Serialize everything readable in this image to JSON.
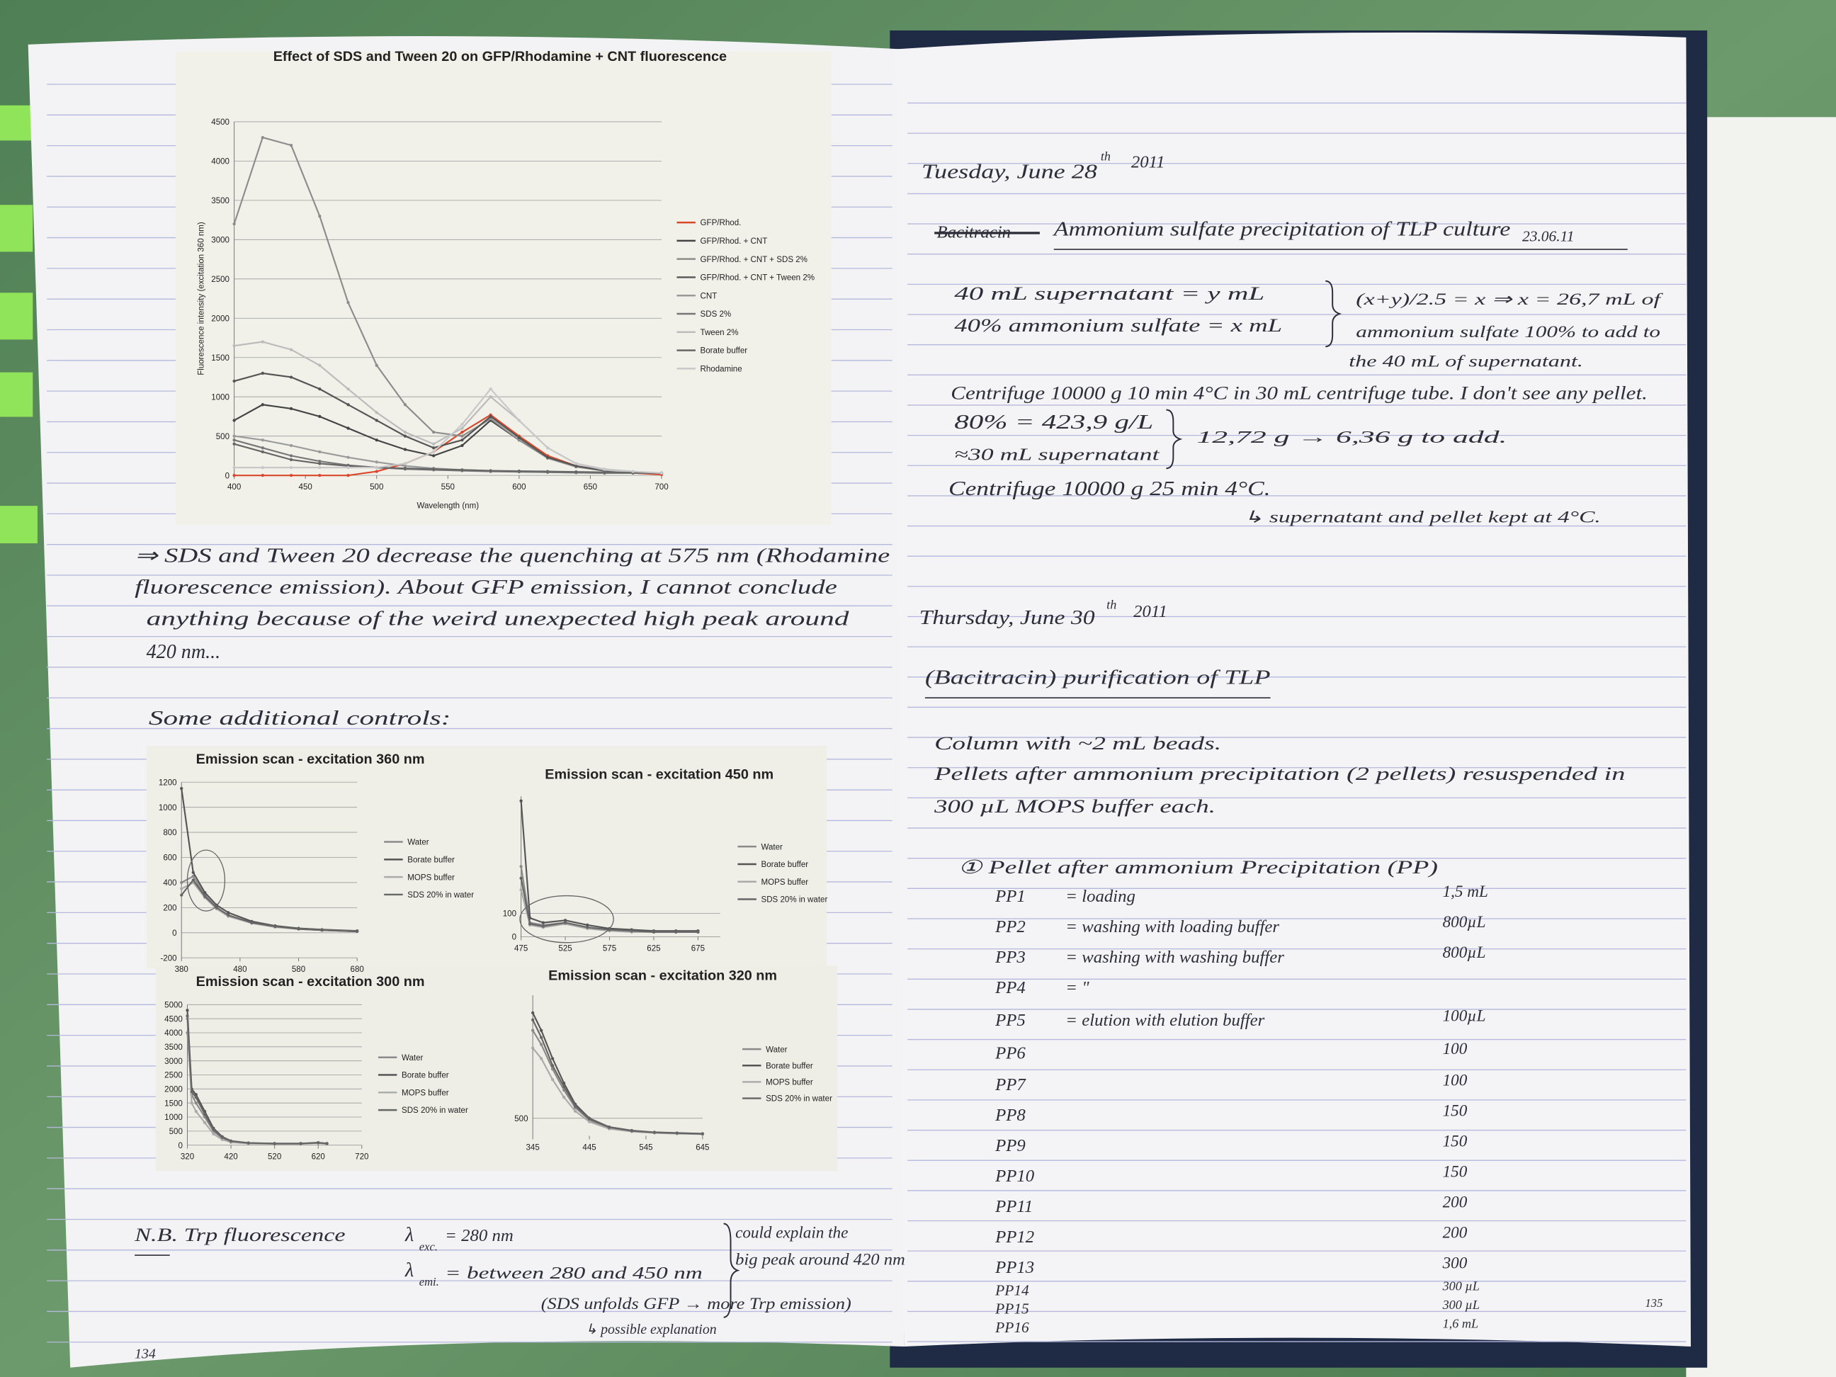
{
  "left_page": {
    "main_chart": {
      "type": "line",
      "title": "Effect of SDS and Tween 20 on GFP/Rhodamine + CNT fluorescence",
      "y_label": "Fluorescence intensity (excitation 360 nm)",
      "x_label": "Wavelength (nm)",
      "x": [
        400,
        420,
        440,
        460,
        480,
        500,
        520,
        540,
        560,
        580,
        600,
        620,
        640,
        660,
        680,
        700
      ],
      "xlim": [
        400,
        700
      ],
      "xticks": [
        400,
        450,
        500,
        550,
        600,
        650,
        700
      ],
      "ylim": [
        0,
        4500
      ],
      "yticks": [
        0,
        500,
        1000,
        1500,
        2000,
        2500,
        3000,
        3500,
        4000,
        4500
      ],
      "grid": true,
      "series": [
        {
          "name": "GFP/Rhod.",
          "color": "#d9482b",
          "values": [
            0,
            0,
            0,
            0,
            0,
            50,
            150,
            300,
            550,
            770,
            500,
            250,
            120,
            60,
            30,
            10
          ]
        },
        {
          "name": "GFP/Rhod. + CNT",
          "color": "#444444",
          "values": [
            700,
            900,
            850,
            750,
            600,
            450,
            330,
            250,
            380,
            700,
            450,
            220,
            110,
            60,
            40,
            30
          ]
        },
        {
          "name": "GFP/Rhod. + CNT + SDS 2%",
          "color": "#8c8c8c",
          "values": [
            3200,
            4300,
            4200,
            3300,
            2200,
            1400,
            900,
            550,
            500,
            720,
            450,
            220,
            110,
            60,
            40,
            30
          ]
        },
        {
          "name": "GFP/Rhod. + CNT + Tween 2%",
          "color": "#555555",
          "values": [
            1200,
            1300,
            1250,
            1100,
            900,
            700,
            500,
            350,
            450,
            750,
            480,
            230,
            120,
            60,
            40,
            30
          ]
        },
        {
          "name": "CNT",
          "color": "#9a9a9a",
          "values": [
            500,
            450,
            380,
            300,
            230,
            170,
            120,
            90,
            70,
            60,
            50,
            40,
            35,
            30,
            30,
            30
          ]
        },
        {
          "name": "SDS 2%",
          "color": "#777777",
          "values": [
            450,
            350,
            250,
            180,
            130,
            100,
            80,
            70,
            60,
            50,
            45,
            40,
            35,
            30,
            30,
            30
          ]
        },
        {
          "name": "Tween 2%",
          "color": "#bbbbbb",
          "values": [
            1650,
            1700,
            1600,
            1400,
            1100,
            800,
            550,
            400,
            600,
            1000,
            700,
            350,
            150,
            70,
            40,
            30
          ]
        },
        {
          "name": "Borate buffer",
          "color": "#666666",
          "values": [
            400,
            300,
            200,
            150,
            120,
            100,
            90,
            80,
            70,
            60,
            55,
            50,
            45,
            40,
            35,
            30
          ]
        },
        {
          "name": "Rhodamine",
          "color": "#c8c8c8",
          "values": [
            100,
            100,
            100,
            100,
            100,
            100,
            150,
            300,
            650,
            1100,
            700,
            350,
            150,
            80,
            50,
            30
          ]
        }
      ]
    },
    "conclusion": [
      "⇒ SDS and Tween 20 decrease the quenching at 575 nm (Rhodamine",
      "fluorescence emission). About GFP emission, I cannot conclude",
      "anything because of the weird unexpected high peak around",
      "420 nm..."
    ],
    "controls_heading": "Some additional controls:",
    "emission_scans": [
      {
        "type": "line",
        "title": "Emission scan - excitation 360 nm",
        "x": [
          380,
          400,
          420,
          440,
          460,
          500,
          540,
          580,
          620,
          680
        ],
        "xlim": [
          380,
          680
        ],
        "xticks": [
          380,
          480,
          580,
          680
        ],
        "ylim": [
          -200,
          1200
        ],
        "yticks": [
          -200,
          0,
          200,
          400,
          600,
          800,
          1000,
          1200
        ],
        "grid": true,
        "series": [
          {
            "name": "Water",
            "color": "#8a8a8a",
            "values": [
              400,
              450,
              300,
              200,
              140,
              80,
              50,
              30,
              20,
              10
            ]
          },
          {
            "name": "Borate buffer",
            "color": "#555555",
            "values": [
              1150,
              480,
              320,
              220,
              160,
              90,
              55,
              35,
              25,
              15
            ]
          },
          {
            "name": "MOPS buffer",
            "color": "#aaaaaa",
            "values": [
              350,
              400,
              280,
              190,
              130,
              75,
              45,
              30,
              20,
              10
            ]
          },
          {
            "name": "SDS 20% in water",
            "color": "#666666",
            "values": [
              300,
              420,
              290,
              200,
              140,
              80,
              50,
              30,
              20,
              10
            ]
          }
        ]
      },
      {
        "type": "line",
        "title": "Emission scan - excitation 450 nm",
        "x": [
          475,
          485,
          500,
          525,
          550,
          575,
          600,
          625,
          650,
          675
        ],
        "xlim": [
          475,
          700
        ],
        "xticks": [
          475,
          525,
          575,
          625,
          675
        ],
        "ylim": [
          0,
          600
        ],
        "yticks": [
          0,
          100
        ],
        "grid": true,
        "series": [
          {
            "name": "Water",
            "color": "#8a8a8a",
            "values": [
              300,
              60,
              50,
              60,
              40,
              30,
              25,
              20,
              20,
              20
            ]
          },
          {
            "name": "Borate buffer",
            "color": "#555555",
            "values": [
              580,
              80,
              60,
              70,
              50,
              35,
              30,
              25,
              25,
              25
            ]
          },
          {
            "name": "MOPS buffer",
            "color": "#aaaaaa",
            "values": [
              200,
              50,
              40,
              55,
              35,
              25,
              20,
              20,
              20,
              20
            ]
          },
          {
            "name": "SDS 20% in water",
            "color": "#666666",
            "values": [
              250,
              55,
              45,
              60,
              40,
              30,
              25,
              20,
              20,
              20
            ]
          }
        ]
      },
      {
        "type": "line",
        "title": "Emission scan - excitation 300 nm",
        "x": [
          320,
          330,
          340,
          360,
          380,
          400,
          420,
          460,
          520,
          580,
          620,
          640
        ],
        "xlim": [
          320,
          720
        ],
        "xticks": [
          320,
          420,
          520,
          620,
          720
        ],
        "ylim": [
          0,
          5000
        ],
        "yticks": [
          0,
          500,
          1000,
          1500,
          2000,
          2500,
          3000,
          3500,
          4000,
          4500,
          5000
        ],
        "grid": true,
        "series": [
          {
            "name": "Water",
            "color": "#8a8a8a",
            "values": [
              4000,
              1800,
              1500,
              1000,
              500,
              250,
              120,
              70,
              50,
              50,
              80,
              50
            ]
          },
          {
            "name": "Borate buffer",
            "color": "#555555",
            "values": [
              4800,
              2000,
              1800,
              1200,
              600,
              300,
              150,
              80,
              60,
              60,
              90,
              60
            ]
          },
          {
            "name": "MOPS buffer",
            "color": "#aaaaaa",
            "values": [
              4500,
              1500,
              1200,
              800,
              400,
              200,
              100,
              60,
              50,
              50,
              70,
              50
            ]
          },
          {
            "name": "SDS 20% in water",
            "color": "#666666",
            "values": [
              4600,
              1900,
              1700,
              1100,
              550,
              280,
              140,
              75,
              55,
              55,
              85,
              55
            ]
          }
        ]
      },
      {
        "type": "line",
        "title": "Emission scan - excitation 320 nm",
        "x": [
          345,
          360,
          380,
          400,
          420,
          445,
          480,
          520,
          560,
          600,
          645
        ],
        "xlim": [
          345,
          645
        ],
        "xticks": [
          345,
          445,
          545,
          645
        ],
        "ylim": [
          0,
          4000
        ],
        "yticks": [
          500
        ],
        "grid": true,
        "series": [
          {
            "name": "Water",
            "color": "#8a8a8a",
            "values": [
              3000,
              2600,
              1900,
              1300,
              800,
              450,
              220,
              130,
              90,
              70,
              50
            ]
          },
          {
            "name": "Borate buffer",
            "color": "#555555",
            "values": [
              3500,
              3000,
              2200,
              1500,
              900,
              500,
              250,
              150,
              100,
              80,
              60
            ]
          },
          {
            "name": "MOPS buffer",
            "color": "#aaaaaa",
            "values": [
              2500,
              2200,
              1600,
              1100,
              700,
              400,
              200,
              120,
              80,
              60,
              45
            ]
          },
          {
            "name": "SDS 20% in water",
            "color": "#666666",
            "values": [
              3300,
              2800,
              2000,
              1400,
              850,
              480,
              240,
              140,
              95,
              75,
              55
            ]
          }
        ]
      }
    ],
    "note": {
      "label": "N.B. Trp fluorescence",
      "exc_symbol": "λ",
      "exc_sub": "exc.",
      "exc_value": "= 280 nm",
      "emi_symbol": "λ",
      "emi_sub": "emi.",
      "emi_value": "= between 280 and 450 nm",
      "brace_text": [
        "could explain the",
        "big peak around 420 nm"
      ],
      "reason": "(SDS unfolds GFP → more Trp emission)",
      "reason_note": "↳ possible explanation"
    },
    "page_number": "134"
  },
  "right_page": {
    "tuesday": {
      "date": "Tuesday, June 28",
      "date_sup": "th",
      "date_year": "2011",
      "struck": "Bacitracin",
      "heading": "Ammonium sulfate precipitation of TLP culture",
      "heading_date": "23.06.11",
      "equations": [
        "40 mL supernatant = y mL",
        "40% ammonium sulfate = x mL"
      ],
      "result": [
        "(x+y)/2.5 = x ⇒ x = 26,7 mL of",
        "ammonium sulfate 100% to add to",
        "the 40 mL of supernatant."
      ],
      "centrifuge_1": "Centrifuge 10000 g 10 min 4°C in 30 mL centrifuge tube. I don't see any pellet.",
      "calc": [
        "80% = 423,9 g/L",
        "≈30 mL supernatant"
      ],
      "calc_result": "12,72 g → 6,36 g to add.",
      "centrifuge_2": "Centrifuge 10000 g 25 min 4°C.",
      "storage": "↳ supernatant and pellet kept at 4°C."
    },
    "thursday": {
      "date": "Thursday, June 30",
      "date_sup": "th",
      "date_year": "2011",
      "heading": "(Bacitracin) purification of TLP",
      "lines": [
        "Column with ~2 mL beads.",
        "Pellets after ammonium precipitation (2 pellets) resuspended in",
        "300 µL MOPS buffer each."
      ],
      "table_heading": "① Pellet after ammonium Precipitation (PP)",
      "rows": [
        {
          "label": "PP1",
          "description": "= loading",
          "volume": "1,5 mL"
        },
        {
          "label": "PP2",
          "description": "= washing with loading buffer",
          "volume": "800µL"
        },
        {
          "label": "PP3",
          "description": "= washing with washing buffer",
          "volume": "800µL"
        },
        {
          "label": "PP4",
          "description": "= \""
        },
        {
          "label": "PP5",
          "description": "= elution with elution buffer",
          "volume": "100µL"
        },
        {
          "label": "PP6",
          "volume": "100"
        },
        {
          "label": "PP7",
          "volume": "100"
        },
        {
          "label": "PP8",
          "volume": "150"
        },
        {
          "label": "PP9",
          "volume": "150"
        },
        {
          "label": "PP10",
          "volume": "150"
        },
        {
          "label": "PP11",
          "volume": "200"
        },
        {
          "label": "PP12",
          "volume": "200"
        },
        {
          "label": "PP13",
          "volume": "300"
        },
        {
          "label": "PP14",
          "volume": "300 µL"
        },
        {
          "label": "PP15",
          "volume": "300 µL"
        },
        {
          "label": "PP16",
          "volume": "1,6 mL"
        }
      ]
    },
    "page_number": "135"
  }
}
